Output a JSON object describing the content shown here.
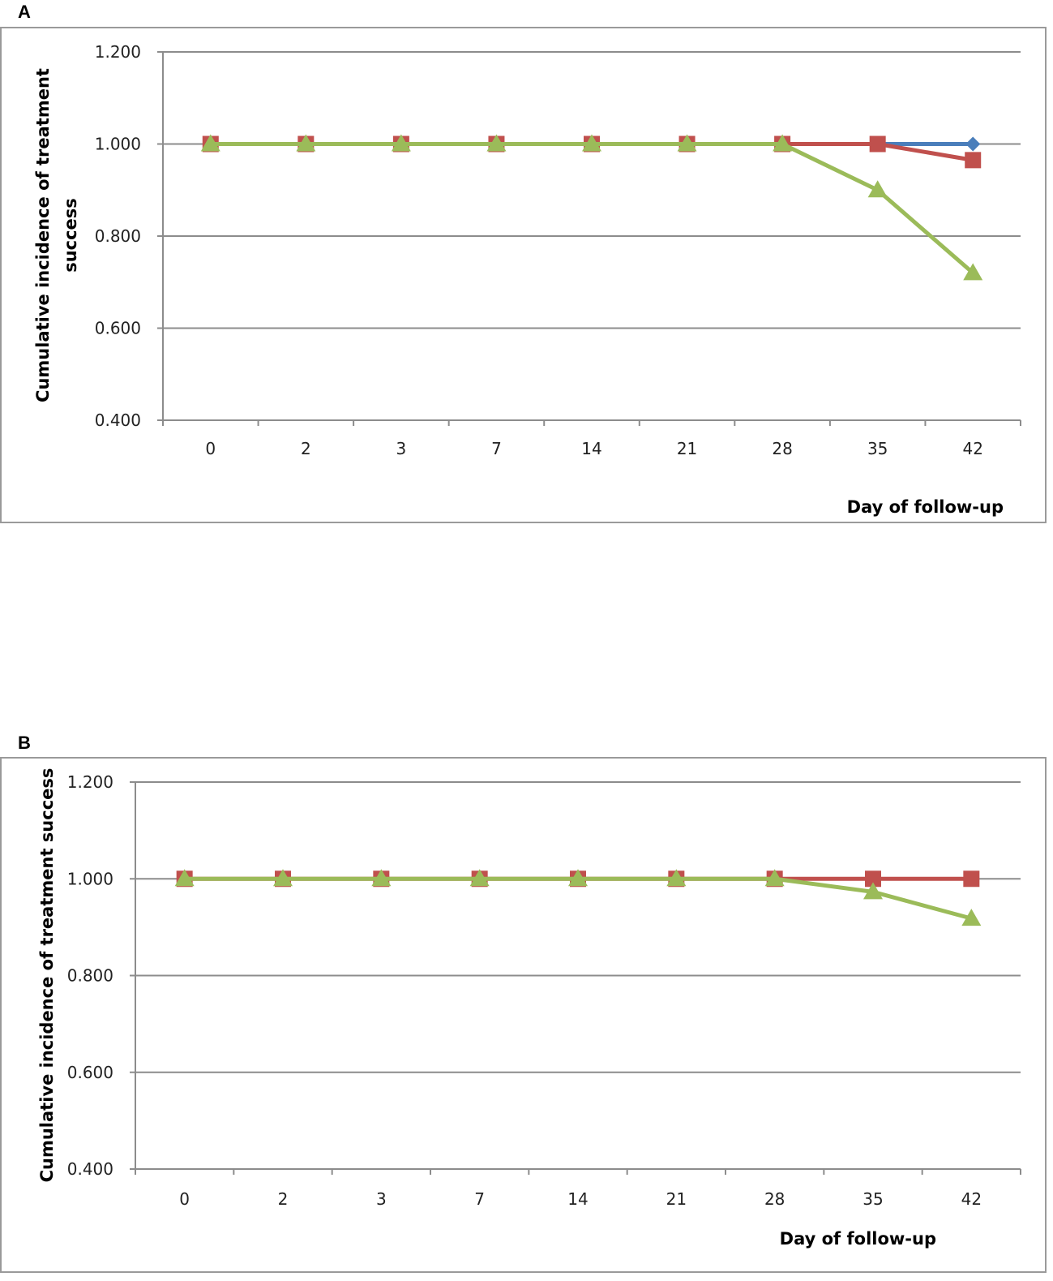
{
  "chart_data": [
    {
      "panel": "A",
      "type": "line",
      "categories": [
        "0",
        "2",
        "3",
        "7",
        "14",
        "21",
        "28",
        "35",
        "42"
      ],
      "ylabel_lines": [
        "Cumulative incidence of treatment",
        "success"
      ],
      "xlabel": "Day of follow-up",
      "ylim": [
        0.4,
        1.2
      ],
      "yticks": [
        "0.400",
        "0.600",
        "0.800",
        "1.000",
        "1.200"
      ],
      "ytick_values": [
        0.4,
        0.6,
        0.8,
        1.0,
        1.2
      ],
      "grid": true,
      "series": [
        {
          "name": "blue-series",
          "color": "#4a7ebb",
          "marker": "diamond",
          "values": [
            1.0,
            1.0,
            1.0,
            1.0,
            1.0,
            1.0,
            1.0,
            1.0,
            1.0
          ]
        },
        {
          "name": "red-series",
          "color": "#c0504d",
          "marker": "square",
          "values": [
            1.0,
            1.0,
            1.0,
            1.0,
            1.0,
            1.0,
            1.0,
            1.0,
            0.965
          ]
        },
        {
          "name": "green-series",
          "color": "#9bbb59",
          "marker": "triangle",
          "values": [
            1.0,
            1.0,
            1.0,
            1.0,
            1.0,
            1.0,
            1.0,
            0.9,
            0.72
          ]
        }
      ]
    },
    {
      "panel": "B",
      "type": "line",
      "categories": [
        "0",
        "2",
        "3",
        "7",
        "14",
        "21",
        "28",
        "35",
        "42"
      ],
      "ylabel_lines": [
        "Cumulative incidence of treatment success"
      ],
      "xlabel": "Day of follow-up",
      "ylim": [
        0.4,
        1.2
      ],
      "yticks": [
        "0.400",
        "0.600",
        "0.800",
        "1.000",
        "1.200"
      ],
      "ytick_values": [
        0.4,
        0.6,
        0.8,
        1.0,
        1.2
      ],
      "grid": true,
      "series": [
        {
          "name": "red-series",
          "color": "#c0504d",
          "marker": "square",
          "values": [
            1.0,
            1.0,
            1.0,
            1.0,
            1.0,
            1.0,
            1.0,
            1.0,
            1.0
          ]
        },
        {
          "name": "green-series",
          "color": "#9bbb59",
          "marker": "triangle",
          "values": [
            1.0,
            1.0,
            1.0,
            1.0,
            1.0,
            1.0,
            1.0,
            0.973,
            0.918
          ]
        }
      ]
    }
  ]
}
